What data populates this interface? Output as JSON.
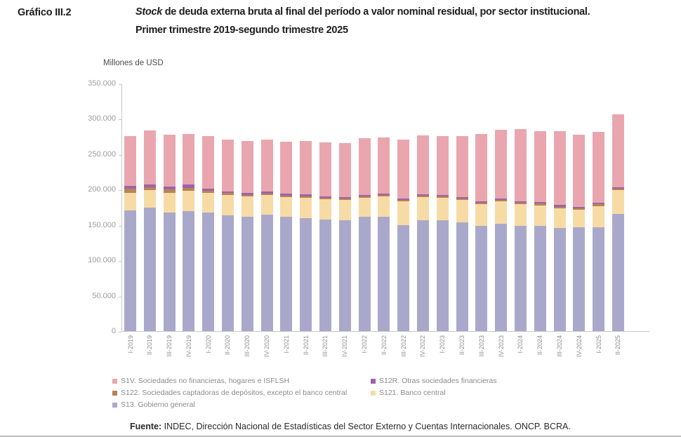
{
  "header": {
    "figure_label": "Gráfico III.2",
    "title_italic": "Stock",
    "title_rest": " de deuda externa bruta al final del período a valor nominal residual, por sector institucional.",
    "title_line2": "Primer trimestre 2019-segundo trimestre 2025"
  },
  "chart_data": {
    "type": "bar",
    "stacked": true,
    "title": "Stock de deuda externa bruta al final del período a valor nominal residual, por sector institucional. Primer trimestre 2019-segundo trimestre 2025",
    "ylabel": "Millones de USD",
    "xlabel": "",
    "grid": false,
    "legend_position": "bottom",
    "ylim": [
      0,
      350000
    ],
    "ytick_values": [
      0,
      50000,
      100000,
      150000,
      200000,
      250000,
      300000,
      350000
    ],
    "ytick_labels": [
      "0",
      "50.000",
      "100.000",
      "150.000",
      "200.000",
      "250.000",
      "300.000",
      "350.000"
    ],
    "categories": [
      "I-2019",
      "II-2019",
      "III-2019",
      "IV-2019",
      "I-2020",
      "II-2020",
      "III-2020",
      "IV-2020",
      "I-2021",
      "II-2021",
      "III-2021",
      "IV-2021",
      "I-2022",
      "II-2022",
      "III-2022",
      "IV-2022",
      "I-2023",
      "II-2023",
      "III-2023",
      "IV-2023",
      "I-2024",
      "II-2024",
      "III-2024",
      "IV-2024",
      "I-2025",
      "II-2025"
    ],
    "series": [
      {
        "id": "S13",
        "name": "S13. Gobierno general",
        "color": "#aaa8ca",
        "values": [
          171000,
          175000,
          168000,
          170000,
          168000,
          164000,
          162000,
          165000,
          162000,
          160000,
          158000,
          157000,
          162000,
          162000,
          150000,
          157000,
          157000,
          154000,
          149000,
          152000,
          148500,
          149000,
          146000,
          147000,
          147000,
          166000
        ]
      },
      {
        "id": "S121",
        "name": "S121. Banco central",
        "color": "#f7dba5",
        "values": [
          24500,
          24000,
          27000,
          28000,
          27000,
          28000,
          28000,
          27000,
          27000,
          28000,
          28000,
          28000,
          26000,
          28000,
          33000,
          32000,
          31000,
          31000,
          30000,
          31000,
          30500,
          29000,
          28000,
          25000,
          30000,
          33000
        ]
      },
      {
        "id": "S122",
        "name": "S122. Sociedades captadoras de depósitos, excepto el banco central",
        "color": "#ba8354",
        "values": [
          5500,
          4500,
          5000,
          4500,
          3500,
          3000,
          2500,
          2500,
          2500,
          2500,
          2500,
          2500,
          2000,
          2000,
          2000,
          2000,
          2000,
          2000,
          2000,
          2000,
          2000,
          2000,
          2000,
          2000,
          2000,
          2500
        ]
      },
      {
        "id": "S12R",
        "name": "S12R. Otras sociedades financieras",
        "color": "#9965a9",
        "values": [
          4000,
          4000,
          4500,
          4500,
          2500,
          2500,
          2500,
          2500,
          2500,
          2500,
          2000,
          2000,
          2000,
          2000,
          2000,
          2000,
          2000,
          2000,
          2000,
          2000,
          2000,
          2000,
          2000,
          2000,
          2000,
          2000
        ]
      },
      {
        "id": "S1V",
        "name": "S1V. Sociedades no financieras, hogares e ISFLSH",
        "color": "#e9a6ae",
        "values": [
          71000,
          76000,
          73000,
          71500,
          75000,
          73500,
          73500,
          73500,
          74000,
          76000,
          76500,
          76500,
          81000,
          80000,
          83500,
          84000,
          84000,
          87000,
          95500,
          97500,
          102500,
          100500,
          105000,
          102000,
          100500,
          103000
        ]
      }
    ],
    "stack_order_bottom_to_top": [
      "S13",
      "S121",
      "S122",
      "S12R",
      "S1V"
    ],
    "legend_order": [
      "S1V",
      "S12R",
      "S122",
      "S121",
      "S13"
    ]
  },
  "footer": {
    "source_label": "Fuente:",
    "source_text": " INDEC, Dirección Nacional de Estadísticas del Sector Externo y Cuentas Internacionales. ONCP. BCRA."
  }
}
